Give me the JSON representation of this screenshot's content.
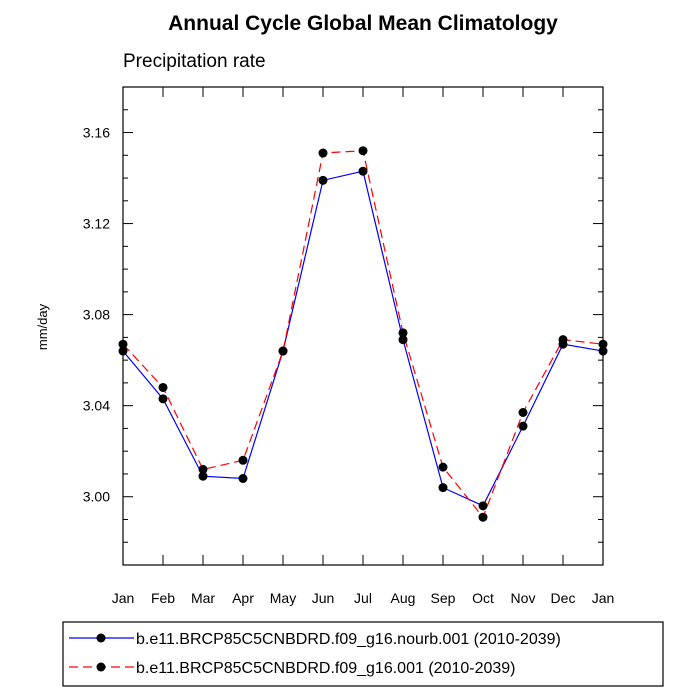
{
  "chart_data": {
    "type": "line",
    "title": "Annual Cycle Global Mean Climatology",
    "subtitle": "Precipitation rate",
    "xlabel": "",
    "ylabel": "mm/day",
    "categories": [
      "Jan",
      "Feb",
      "Mar",
      "Apr",
      "May",
      "Jun",
      "Jul",
      "Aug",
      "Sep",
      "Oct",
      "Nov",
      "Dec",
      "Jan"
    ],
    "ylim": [
      2.97,
      3.18
    ],
    "yticks": [
      3.0,
      3.04,
      3.08,
      3.12,
      3.16
    ],
    "ytick_labels": [
      "3.00",
      "3.04",
      "3.08",
      "3.12",
      "3.16"
    ],
    "grid": false,
    "series": [
      {
        "name": "b.e11.BRCP85C5CNBDRD.f09_g16.nourb.001 (2010-2039)",
        "color": "#0000ff",
        "style": "solid",
        "values": [
          3.064,
          3.043,
          3.009,
          3.008,
          3.064,
          3.139,
          3.143,
          3.069,
          3.004,
          2.996,
          3.031,
          3.067,
          3.064
        ]
      },
      {
        "name": "b.e11.BRCP85C5CNBDRD.f09_g16.001 (2010-2039)",
        "color": "#ff0000",
        "style": "dashed",
        "values": [
          3.067,
          3.048,
          3.012,
          3.016,
          3.064,
          3.151,
          3.152,
          3.072,
          3.013,
          2.991,
          3.037,
          3.069,
          3.067
        ]
      }
    ]
  }
}
